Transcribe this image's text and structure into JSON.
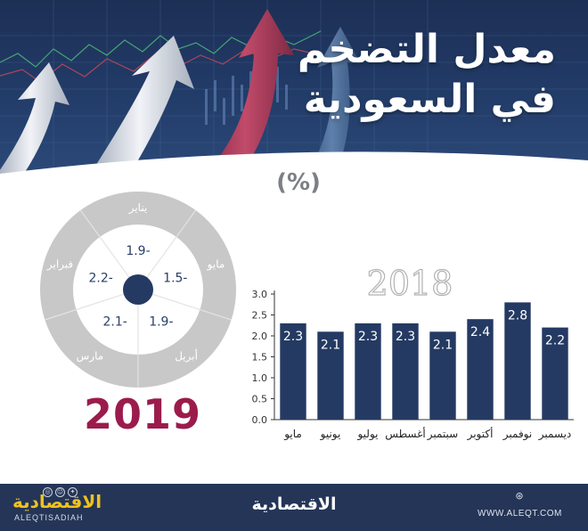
{
  "header": {
    "title_line1": "معدل التضخم",
    "title_line2": "في السعودية"
  },
  "unit_label": "(%)",
  "chart_data": [
    {
      "type": "pie",
      "title": "2019",
      "categories": [
        "يناير",
        "مايو",
        "أبريل",
        "مارس",
        "فبراير"
      ],
      "values": [
        -1.9,
        -1.5,
        -1.9,
        -2.1,
        -2.2
      ],
      "value_labels": [
        "1.9-",
        "1.5-",
        "1.9-",
        "2.1-",
        "2.2-"
      ]
    },
    {
      "type": "bar",
      "title": "2018",
      "categories": [
        "مايو",
        "يونيو",
        "يوليو",
        "أغسطس",
        "سبتمبر",
        "أكتوبر",
        "نوفمبر",
        "ديسمبر"
      ],
      "values": [
        2.3,
        2.1,
        2.3,
        2.3,
        2.1,
        2.4,
        2.8,
        2.2
      ],
      "value_labels": [
        "2.3",
        "2.1",
        "2.3",
        "2.3",
        "2.1",
        "2.4",
        "2.8",
        "2.2"
      ],
      "ylim": [
        0,
        3.0
      ],
      "yticks": [
        "0.0",
        "0.5",
        "1.0",
        "1.5",
        "2.0",
        "2.5",
        "3.0"
      ],
      "grid": false,
      "colors": {
        "bar": "#243a63",
        "label": "#ffffff",
        "axis": "#333333"
      }
    }
  ],
  "colors": {
    "accent": "#9b1c4c",
    "navy": "#243a63",
    "ring": "#c8c8c8"
  },
  "footer": {
    "logo": "الاقتصادية",
    "logo_en": "ALEQTISADIAH",
    "center_logo": "الاقتصادية",
    "site": "WWW.ALEQT.COM",
    "icons": [
      "instagram-icon",
      "snapchat-icon",
      "twitter-icon",
      "globe-icon"
    ]
  }
}
